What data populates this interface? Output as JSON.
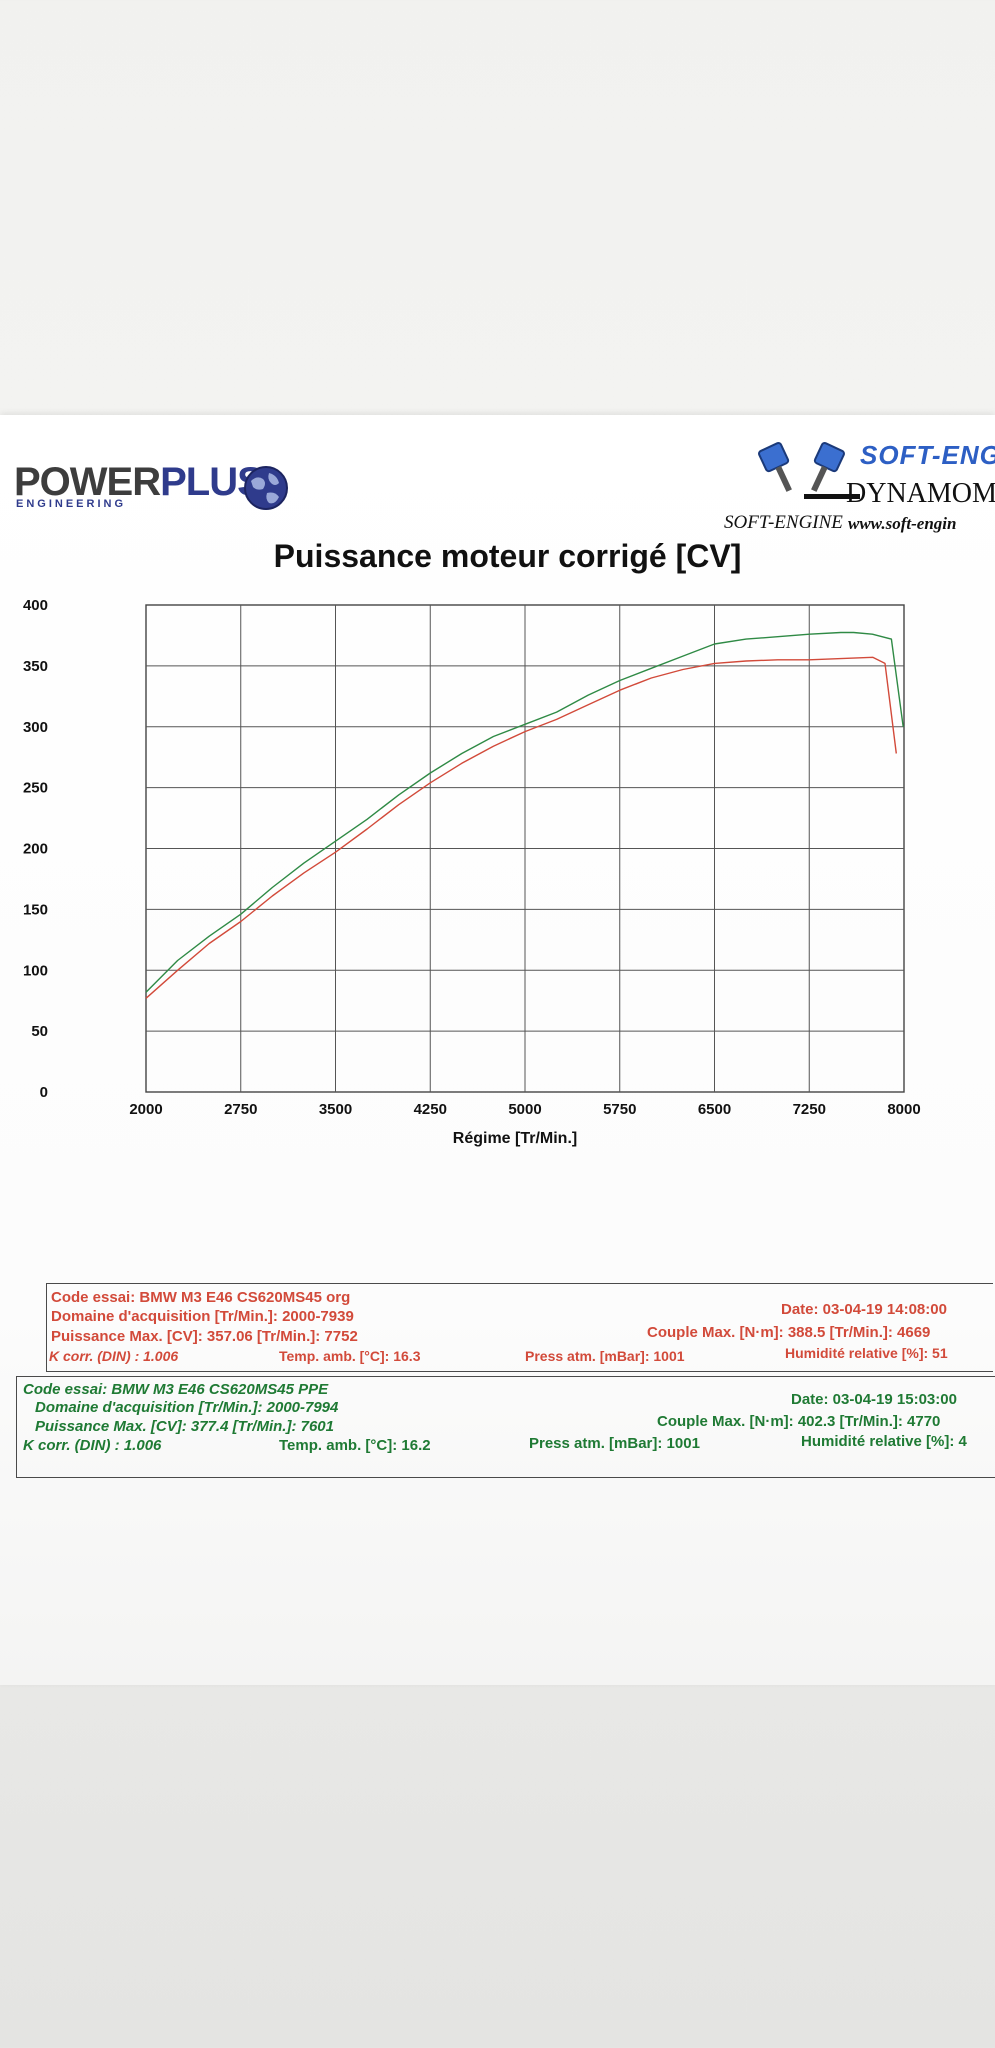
{
  "logos": {
    "left": {
      "word_a": "POWER",
      "word_b": "PLUS",
      "sub": "ENGINEERING",
      "globe": "globe-icon"
    },
    "right": {
      "top": "SOFT-ENG",
      "dyn": "DYNAMOME",
      "brand": "SOFT-ENGINE",
      "url": "www.soft-engin",
      "icon": "pistons-v-icon"
    }
  },
  "colors": {
    "run_org": "#d24a3a",
    "run_ppe": "#2f8a45",
    "grid": "#555555"
  },
  "chart_data": {
    "type": "line",
    "title": "Puissance moteur corrigé [CV]",
    "xlabel": "Régime [Tr/Min.]",
    "ylabel": "",
    "xlim": [
      2000,
      8000
    ],
    "ylim": [
      0,
      400
    ],
    "x_ticks": [
      "2000",
      "2750",
      "3500",
      "4250",
      "5000",
      "5750",
      "6500",
      "7250",
      "8000"
    ],
    "y_ticks": [
      "0",
      "50",
      "100",
      "150",
      "200",
      "250",
      "300",
      "350",
      "400"
    ],
    "grid": true,
    "series": [
      {
        "name": "BMW M3 E46 CS620MS45 PPE",
        "color": "#2f8a45",
        "x": [
          2000,
          2250,
          2500,
          2750,
          3000,
          3250,
          3500,
          3750,
          4000,
          4250,
          4500,
          4750,
          5000,
          5250,
          5500,
          5750,
          6000,
          6250,
          6500,
          6750,
          7000,
          7250,
          7500,
          7601,
          7750,
          7900,
          7994
        ],
        "y": [
          82,
          108,
          128,
          146,
          168,
          188,
          206,
          224,
          244,
          262,
          278,
          292,
          302,
          312,
          326,
          338,
          348,
          358,
          368,
          372,
          374,
          376,
          377.4,
          377.4,
          376,
          372,
          300
        ]
      },
      {
        "name": "BMW M3 E46 CS620MS45 org",
        "color": "#d24a3a",
        "x": [
          2000,
          2250,
          2500,
          2750,
          3000,
          3250,
          3500,
          3750,
          4000,
          4250,
          4500,
          4750,
          5000,
          5250,
          5500,
          5750,
          6000,
          6250,
          6500,
          6750,
          7000,
          7250,
          7500,
          7752,
          7850,
          7939
        ],
        "y": [
          77,
          100,
          122,
          140,
          161,
          180,
          197,
          216,
          236,
          254,
          270,
          284,
          296,
          306,
          318,
          330,
          340,
          347,
          352,
          354,
          355,
          355,
          356,
          357.06,
          352,
          278
        ]
      }
    ]
  },
  "runs": [
    {
      "code": "Code essai: BMW M3 E46 CS620MS45 org",
      "domaine": "Domaine d'acquisition [Tr/Min.]: 2000-7939",
      "puissance": "Puissance Max. [CV]: 357.06   [Tr/Min.]: 7752",
      "kcorr": "K corr. (DIN) : 1.006",
      "temp": "Temp. amb. [°C]: 16.3",
      "press": "Press atm. [mBar]: 1001",
      "date": "Date: 03-04-19   14:08:00",
      "couple": "Couple Max. [N·m]: 388.5   [Tr/Min.]: 4669",
      "humid": "Humidité relative [%]: 51"
    },
    {
      "code": "Code essai: BMW M3 E46 CS620MS45 PPE",
      "domaine": "Domaine d'acquisition [Tr/Min.]: 2000-7994",
      "puissance": "Puissance Max. [CV]: 377.4   [Tr/Min.]: 7601",
      "kcorr": "K corr. (DIN) : 1.006",
      "temp": "Temp. amb. [°C]: 16.2",
      "press": "Press atm. [mBar]: 1001",
      "date": "Date: 03-04-19   15:03:00",
      "couple": "Couple Max. [N·m]: 402.3   [Tr/Min.]: 4770",
      "humid": "Humidité relative [%]: 4"
    }
  ]
}
